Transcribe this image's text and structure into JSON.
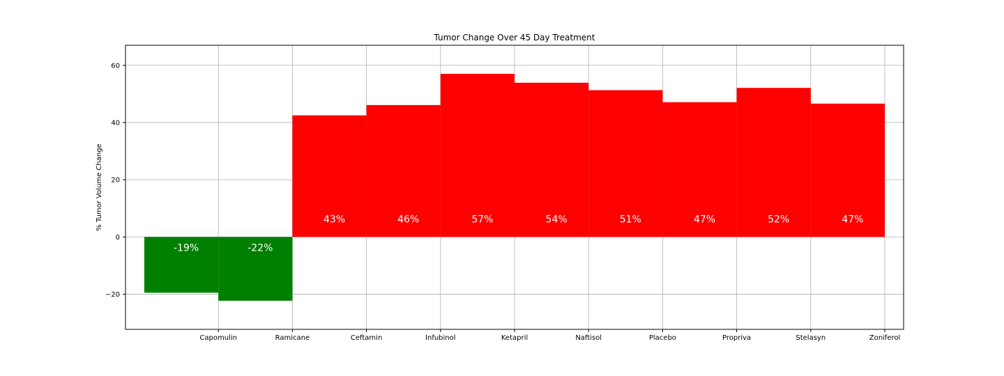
{
  "chart_data": {
    "type": "bar",
    "title": "Tumor Change Over 45 Day Treatment",
    "xlabel": "",
    "ylabel": "% Tumor Volume Change",
    "categories": [
      "Capomulin",
      "Ramicane",
      "Ceftamin",
      "Infubinol",
      "Ketapril",
      "Naftisol",
      "Placebo",
      "Propriva",
      "Stelasyn",
      "Zoniferol"
    ],
    "values": [
      -19.5,
      -22.3,
      42.5,
      46.1,
      57.0,
      53.9,
      51.3,
      47.1,
      52.1,
      46.6
    ],
    "data_labels": [
      "-19%",
      "-22%",
      "43%",
      "46%",
      "57%",
      "54%",
      "51%",
      "47%",
      "52%",
      "47%"
    ],
    "ylim": [
      -32.3,
      67.0
    ],
    "yticks": [
      -20,
      0,
      20,
      40,
      60
    ],
    "ytick_labels": [
      "−20",
      "0",
      "20",
      "40",
      "60"
    ],
    "grid": true,
    "colors": {
      "negative": "#008000",
      "positive": "#ff0000",
      "grid": "#b0b0b0",
      "axis": "#000000"
    }
  }
}
